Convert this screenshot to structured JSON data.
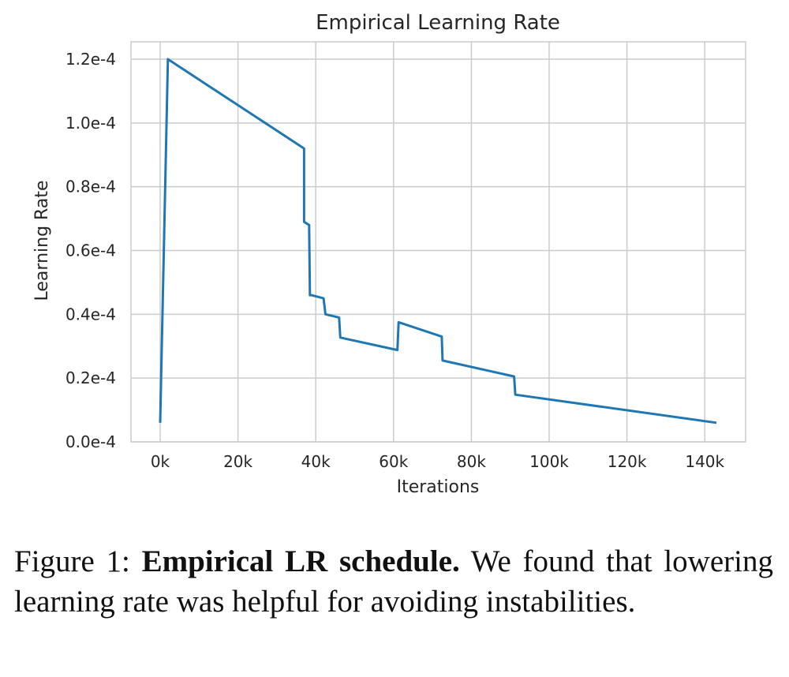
{
  "chart_data": {
    "type": "line",
    "title": "Empirical Learning Rate",
    "xlabel": "Iterations",
    "ylabel": "Learning Rate",
    "xlim": [
      -7500,
      150500
    ],
    "ylim": [
      0,
      0.00012
    ],
    "grid": true,
    "line_color": "#1f77b4",
    "xticks": [
      {
        "value": 0,
        "label": "0k"
      },
      {
        "value": 20000,
        "label": "20k"
      },
      {
        "value": 40000,
        "label": "40k"
      },
      {
        "value": 60000,
        "label": "60k"
      },
      {
        "value": 80000,
        "label": "80k"
      },
      {
        "value": 100000,
        "label": "100k"
      },
      {
        "value": 120000,
        "label": "120k"
      },
      {
        "value": 140000,
        "label": "140k"
      }
    ],
    "yticks": [
      {
        "value": 0,
        "label": "0.0e-4"
      },
      {
        "value": 2e-05,
        "label": "0.2e-4"
      },
      {
        "value": 4e-05,
        "label": "0.4e-4"
      },
      {
        "value": 6e-05,
        "label": "0.6e-4"
      },
      {
        "value": 8e-05,
        "label": "0.8e-4"
      },
      {
        "value": 0.0001,
        "label": "1.0e-4"
      },
      {
        "value": 0.00012,
        "label": "1.2e-4"
      }
    ],
    "series": [
      {
        "name": "learning rate",
        "x": [
          0,
          2000,
          37000,
          37000,
          38300,
          38500,
          38900,
          42000,
          42500,
          46000,
          46300,
          61000,
          61300,
          72400,
          72600,
          91000,
          91300,
          143000
        ],
        "y": [
          6e-06,
          0.00012,
          9.2e-05,
          6.9e-05,
          6.8e-05,
          4.6e-05,
          4.6e-05,
          4.5e-05,
          4e-05,
          3.9e-05,
          3.27e-05,
          2.88e-05,
          3.75e-05,
          3.3e-05,
          2.55e-05,
          2.05e-05,
          1.48e-05,
          6e-06
        ]
      }
    ]
  },
  "caption": {
    "prefix": "Figure 1: ",
    "bold": "Empirical LR schedule.",
    "text": " We found that lowering learning rate was helpful for avoiding instabilities."
  }
}
